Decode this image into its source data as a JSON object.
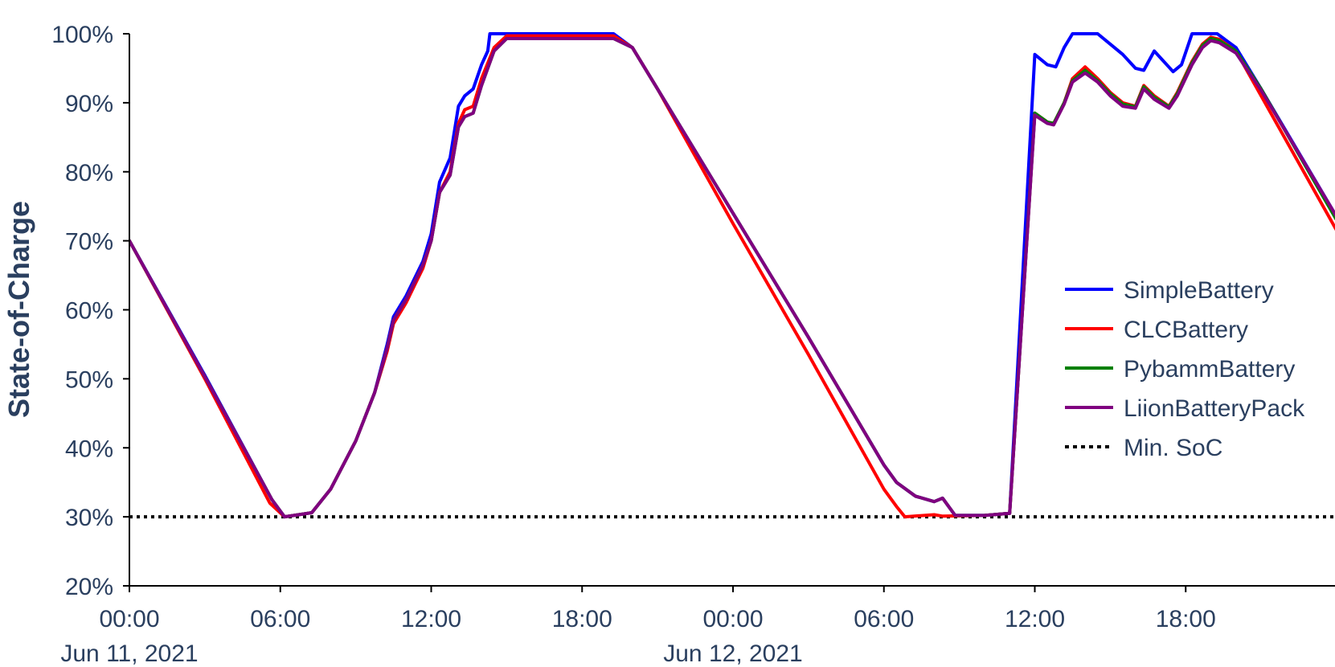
{
  "chart_data": {
    "type": "line",
    "ylabel": "State-of-Charge",
    "xlabel": "",
    "y_unit": "%",
    "ylim": [
      20,
      100
    ],
    "y_ticks": [
      20,
      30,
      40,
      50,
      60,
      70,
      80,
      90,
      100
    ],
    "y_tick_labels": [
      "20%",
      "30%",
      "40%",
      "50%",
      "60%",
      "70%",
      "80%",
      "90%",
      "100%"
    ],
    "x_range_start": "2021-06-11 00:00",
    "x_range_end": "2021-06-12 23:59",
    "x_ticks": [
      {
        "t": "2021-06-11 00:00",
        "label": "00:00",
        "date_label": "Jun 11, 2021"
      },
      {
        "t": "2021-06-11 06:00",
        "label": "06:00",
        "date_label": ""
      },
      {
        "t": "2021-06-11 12:00",
        "label": "12:00",
        "date_label": ""
      },
      {
        "t": "2021-06-11 18:00",
        "label": "18:00",
        "date_label": ""
      },
      {
        "t": "2021-06-12 00:00",
        "label": "00:00",
        "date_label": "Jun 12, 2021"
      },
      {
        "t": "2021-06-12 06:00",
        "label": "06:00",
        "date_label": ""
      },
      {
        "t": "2021-06-12 12:00",
        "label": "12:00",
        "date_label": ""
      },
      {
        "t": "2021-06-12 18:00",
        "label": "18:00",
        "date_label": ""
      }
    ],
    "grid": false,
    "legend_position": "right",
    "series": [
      {
        "name": "SimpleBattery",
        "color": "#0000ff",
        "points": [
          [
            "2021-06-11 00:00",
            70
          ],
          [
            "2021-06-11 03:00",
            50.5
          ],
          [
            "2021-06-11 05:40",
            32.5
          ],
          [
            "2021-06-11 06:10",
            30
          ],
          [
            "2021-06-11 07:15",
            30.6
          ],
          [
            "2021-06-11 08:00",
            34
          ],
          [
            "2021-06-11 09:00",
            41
          ],
          [
            "2021-06-11 09:45",
            48
          ],
          [
            "2021-06-11 10:15",
            55
          ],
          [
            "2021-06-11 10:30",
            59
          ],
          [
            "2021-06-11 11:00",
            62
          ],
          [
            "2021-06-11 11:20",
            64.5
          ],
          [
            "2021-06-11 11:40",
            67
          ],
          [
            "2021-06-11 12:00",
            71
          ],
          [
            "2021-06-11 12:20",
            78.5
          ],
          [
            "2021-06-11 12:45",
            82
          ],
          [
            "2021-06-11 13:05",
            89.5
          ],
          [
            "2021-06-11 13:20",
            91
          ],
          [
            "2021-06-11 13:40",
            92
          ],
          [
            "2021-06-11 14:00",
            95.5
          ],
          [
            "2021-06-11 14:15",
            97.5
          ],
          [
            "2021-06-11 14:20",
            100
          ],
          [
            "2021-06-11 19:15",
            100
          ],
          [
            "2021-06-11 20:00",
            98
          ],
          [
            "2021-06-11 21:00",
            92
          ],
          [
            "2021-06-11 24:00",
            74
          ],
          [
            "2021-06-12 03:00",
            56
          ],
          [
            "2021-06-12 06:00",
            37.5
          ],
          [
            "2021-06-12 06:30",
            35
          ],
          [
            "2021-06-12 07:15",
            33
          ],
          [
            "2021-06-12 08:00",
            32.2
          ],
          [
            "2021-06-12 08:20",
            32.7
          ],
          [
            "2021-06-12 08:50",
            30.2
          ],
          [
            "2021-06-12 10:00",
            30.2
          ],
          [
            "2021-06-12 11:00",
            30.5
          ],
          [
            "2021-06-12 12:00",
            97
          ],
          [
            "2021-06-12 12:30",
            95.5
          ],
          [
            "2021-06-12 12:50",
            95.2
          ],
          [
            "2021-06-12 13:10",
            98
          ],
          [
            "2021-06-12 13:30",
            100
          ],
          [
            "2021-06-12 14:30",
            100
          ],
          [
            "2021-06-12 15:00",
            98.5
          ],
          [
            "2021-06-12 15:30",
            97
          ],
          [
            "2021-06-12 16:00",
            95
          ],
          [
            "2021-06-12 16:20",
            94.7
          ],
          [
            "2021-06-12 16:45",
            97.5
          ],
          [
            "2021-06-12 17:30",
            94.5
          ],
          [
            "2021-06-12 17:50",
            95.5
          ],
          [
            "2021-06-12 18:15",
            100
          ],
          [
            "2021-06-12 19:15",
            100
          ],
          [
            "2021-06-12 20:00",
            98
          ],
          [
            "2021-06-12 21:00",
            92
          ],
          [
            "2021-06-12 24:00",
            73.5
          ]
        ]
      },
      {
        "name": "CLCBattery",
        "color": "#ff0000",
        "points": [
          [
            "2021-06-11 00:00",
            70
          ],
          [
            "2021-06-11 03:00",
            50
          ],
          [
            "2021-06-11 05:35",
            32
          ],
          [
            "2021-06-11 06:10",
            30
          ],
          [
            "2021-06-11 07:15",
            30.6
          ],
          [
            "2021-06-11 08:00",
            34
          ],
          [
            "2021-06-11 09:00",
            41
          ],
          [
            "2021-06-11 09:45",
            48
          ],
          [
            "2021-06-11 10:15",
            54
          ],
          [
            "2021-06-11 10:30",
            58
          ],
          [
            "2021-06-11 11:00",
            61
          ],
          [
            "2021-06-11 11:20",
            63.5
          ],
          [
            "2021-06-11 11:40",
            66
          ],
          [
            "2021-06-11 12:00",
            70
          ],
          [
            "2021-06-11 12:20",
            77
          ],
          [
            "2021-06-11 12:45",
            80
          ],
          [
            "2021-06-11 13:05",
            87
          ],
          [
            "2021-06-11 13:20",
            89
          ],
          [
            "2021-06-11 13:40",
            89.5
          ],
          [
            "2021-06-11 14:00",
            93.5
          ],
          [
            "2021-06-11 14:30",
            98
          ],
          [
            "2021-06-11 15:00",
            99.7
          ],
          [
            "2021-06-11 19:15",
            99.7
          ],
          [
            "2021-06-11 20:00",
            98
          ],
          [
            "2021-06-11 21:00",
            92
          ],
          [
            "2021-06-11 24:00",
            72.5
          ],
          [
            "2021-06-12 03:00",
            53.5
          ],
          [
            "2021-06-12 06:00",
            34
          ],
          [
            "2021-06-12 06:30",
            31.5
          ],
          [
            "2021-06-12 06:50",
            30
          ],
          [
            "2021-06-12 08:00",
            30.3
          ],
          [
            "2021-06-12 08:20",
            30.1
          ],
          [
            "2021-06-12 10:00",
            30.2
          ],
          [
            "2021-06-12 11:00",
            30.5
          ],
          [
            "2021-06-12 12:00",
            88.5
          ],
          [
            "2021-06-12 12:30",
            87.2
          ],
          [
            "2021-06-12 12:45",
            87
          ],
          [
            "2021-06-12 13:10",
            90
          ],
          [
            "2021-06-12 13:30",
            93.5
          ],
          [
            "2021-06-12 14:00",
            95.2
          ],
          [
            "2021-06-12 14:30",
            93.5
          ],
          [
            "2021-06-12 15:00",
            91.5
          ],
          [
            "2021-06-12 15:30",
            90
          ],
          [
            "2021-06-12 16:00",
            89.5
          ],
          [
            "2021-06-12 16:20",
            92.5
          ],
          [
            "2021-06-12 16:45",
            91
          ],
          [
            "2021-06-12 17:20",
            89.5
          ],
          [
            "2021-06-12 17:40",
            91.5
          ],
          [
            "2021-06-12 18:15",
            96
          ],
          [
            "2021-06-12 18:40",
            98.5
          ],
          [
            "2021-06-12 19:00",
            99.5
          ],
          [
            "2021-06-12 19:20",
            99.2
          ],
          [
            "2021-06-12 20:00",
            97.5
          ],
          [
            "2021-06-12 21:00",
            91
          ],
          [
            "2021-06-12 24:00",
            71.5
          ]
        ]
      },
      {
        "name": "PybammBattery",
        "color": "#008000",
        "points": [
          [
            "2021-06-11 00:00",
            70
          ],
          [
            "2021-06-11 03:00",
            50.3
          ],
          [
            "2021-06-11 05:40",
            32.5
          ],
          [
            "2021-06-11 06:10",
            30
          ],
          [
            "2021-06-11 07:15",
            30.6
          ],
          [
            "2021-06-11 08:00",
            34
          ],
          [
            "2021-06-11 09:00",
            41
          ],
          [
            "2021-06-11 09:45",
            48
          ],
          [
            "2021-06-11 10:15",
            54.5
          ],
          [
            "2021-06-11 10:30",
            58.5
          ],
          [
            "2021-06-11 11:00",
            61.5
          ],
          [
            "2021-06-11 11:20",
            64
          ],
          [
            "2021-06-11 11:40",
            66.5
          ],
          [
            "2021-06-11 12:00",
            70
          ],
          [
            "2021-06-11 12:20",
            77
          ],
          [
            "2021-06-11 12:45",
            79.5
          ],
          [
            "2021-06-11 13:05",
            86.5
          ],
          [
            "2021-06-11 13:20",
            88
          ],
          [
            "2021-06-11 13:40",
            88.5
          ],
          [
            "2021-06-11 14:00",
            92.5
          ],
          [
            "2021-06-11 14:30",
            97.5
          ],
          [
            "2021-06-11 15:00",
            99.3
          ],
          [
            "2021-06-11 19:15",
            99.3
          ],
          [
            "2021-06-11 20:00",
            98
          ],
          [
            "2021-06-11 21:00",
            92
          ],
          [
            "2021-06-11 24:00",
            74
          ],
          [
            "2021-06-12 03:00",
            56
          ],
          [
            "2021-06-12 06:00",
            37.5
          ],
          [
            "2021-06-12 06:30",
            35
          ],
          [
            "2021-06-12 07:15",
            33
          ],
          [
            "2021-06-12 08:00",
            32.2
          ],
          [
            "2021-06-12 08:20",
            32.7
          ],
          [
            "2021-06-12 08:50",
            30.2
          ],
          [
            "2021-06-12 10:00",
            30.2
          ],
          [
            "2021-06-12 11:00",
            30.5
          ],
          [
            "2021-06-12 12:00",
            88.5
          ],
          [
            "2021-06-12 12:30",
            87.2
          ],
          [
            "2021-06-12 12:45",
            87
          ],
          [
            "2021-06-12 13:10",
            90
          ],
          [
            "2021-06-12 13:30",
            93.2
          ],
          [
            "2021-06-12 14:00",
            94.7
          ],
          [
            "2021-06-12 14:30",
            93.2
          ],
          [
            "2021-06-12 15:00",
            91.3
          ],
          [
            "2021-06-12 15:30",
            89.8
          ],
          [
            "2021-06-12 16:00",
            89.4
          ],
          [
            "2021-06-12 16:20",
            92.3
          ],
          [
            "2021-06-12 16:45",
            90.8
          ],
          [
            "2021-06-12 17:20",
            89.4
          ],
          [
            "2021-06-12 17:40",
            91.3
          ],
          [
            "2021-06-12 18:15",
            95.8
          ],
          [
            "2021-06-12 18:40",
            98.3
          ],
          [
            "2021-06-12 19:00",
            99.3
          ],
          [
            "2021-06-12 19:20",
            99
          ],
          [
            "2021-06-12 20:00",
            97.5
          ],
          [
            "2021-06-12 21:00",
            92
          ],
          [
            "2021-06-12 24:00",
            73
          ]
        ]
      },
      {
        "name": "LiionBatteryPack",
        "color": "#800080",
        "points": [
          [
            "2021-06-11 00:00",
            70
          ],
          [
            "2021-06-11 03:00",
            50.3
          ],
          [
            "2021-06-11 05:40",
            32.5
          ],
          [
            "2021-06-11 06:10",
            30
          ],
          [
            "2021-06-11 07:15",
            30.6
          ],
          [
            "2021-06-11 08:00",
            34
          ],
          [
            "2021-06-11 09:00",
            41
          ],
          [
            "2021-06-11 09:45",
            48
          ],
          [
            "2021-06-11 10:15",
            54.5
          ],
          [
            "2021-06-11 10:30",
            58.5
          ],
          [
            "2021-06-11 11:00",
            61.5
          ],
          [
            "2021-06-11 11:20",
            64
          ],
          [
            "2021-06-11 11:40",
            66.5
          ],
          [
            "2021-06-11 12:00",
            70
          ],
          [
            "2021-06-11 12:20",
            77
          ],
          [
            "2021-06-11 12:45",
            79.5
          ],
          [
            "2021-06-11 13:05",
            86.5
          ],
          [
            "2021-06-11 13:20",
            88
          ],
          [
            "2021-06-11 13:40",
            88.5
          ],
          [
            "2021-06-11 14:00",
            92.5
          ],
          [
            "2021-06-11 14:30",
            97.5
          ],
          [
            "2021-06-11 15:00",
            99.3
          ],
          [
            "2021-06-11 19:15",
            99.3
          ],
          [
            "2021-06-11 20:00",
            98
          ],
          [
            "2021-06-11 21:00",
            92
          ],
          [
            "2021-06-11 24:00",
            74
          ],
          [
            "2021-06-12 03:00",
            56
          ],
          [
            "2021-06-12 06:00",
            37.5
          ],
          [
            "2021-06-12 06:30",
            35
          ],
          [
            "2021-06-12 07:15",
            33
          ],
          [
            "2021-06-12 08:00",
            32.2
          ],
          [
            "2021-06-12 08:20",
            32.7
          ],
          [
            "2021-06-12 08:50",
            30.2
          ],
          [
            "2021-06-12 10:00",
            30.2
          ],
          [
            "2021-06-12 11:00",
            30.5
          ],
          [
            "2021-06-12 12:00",
            88.2
          ],
          [
            "2021-06-12 12:30",
            87
          ],
          [
            "2021-06-12 12:45",
            86.8
          ],
          [
            "2021-06-12 13:10",
            89.8
          ],
          [
            "2021-06-12 13:30",
            93
          ],
          [
            "2021-06-12 14:00",
            94.3
          ],
          [
            "2021-06-12 14:30",
            93
          ],
          [
            "2021-06-12 15:00",
            91
          ],
          [
            "2021-06-12 15:30",
            89.5
          ],
          [
            "2021-06-12 16:00",
            89.2
          ],
          [
            "2021-06-12 16:20",
            92
          ],
          [
            "2021-06-12 16:45",
            90.5
          ],
          [
            "2021-06-12 17:20",
            89.2
          ],
          [
            "2021-06-12 17:40",
            91
          ],
          [
            "2021-06-12 18:15",
            95.5
          ],
          [
            "2021-06-12 18:40",
            98
          ],
          [
            "2021-06-12 19:00",
            99
          ],
          [
            "2021-06-12 19:20",
            98.7
          ],
          [
            "2021-06-12 20:00",
            97.2
          ],
          [
            "2021-06-12 21:00",
            91.8
          ],
          [
            "2021-06-12 24:00",
            73.5
          ]
        ]
      }
    ],
    "reference_lines": [
      {
        "name": "Min. SoC",
        "y": 30,
        "color": "#000000",
        "style": "dotted"
      }
    ]
  }
}
